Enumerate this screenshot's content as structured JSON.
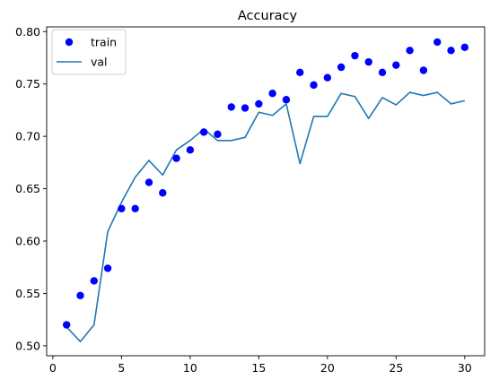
{
  "chart_data": {
    "type": "line",
    "title": "Accuracy",
    "xlabel": "",
    "ylabel": "",
    "xlim": [
      -0.45,
      31.45
    ],
    "ylim": [
      0.4905,
      0.8045
    ],
    "xticks": [
      0,
      5,
      10,
      15,
      20,
      25,
      30
    ],
    "yticks": [
      0.5,
      0.55,
      0.6,
      0.65,
      0.7,
      0.75,
      0.8
    ],
    "ytick_labels": [
      "0.50",
      "0.55",
      "0.60",
      "0.65",
      "0.70",
      "0.75",
      "0.80"
    ],
    "grid": false,
    "legend_position": "top-left",
    "x": [
      1,
      2,
      3,
      4,
      5,
      6,
      7,
      8,
      9,
      10,
      11,
      12,
      13,
      14,
      15,
      16,
      17,
      18,
      19,
      20,
      21,
      22,
      23,
      24,
      25,
      26,
      27,
      28,
      29,
      30
    ],
    "series": [
      {
        "name": "train",
        "style": "markers",
        "color": "#0000ff",
        "values": [
          0.52,
          0.548,
          0.562,
          0.574,
          0.631,
          0.631,
          0.656,
          0.646,
          0.679,
          0.687,
          0.704,
          0.702,
          0.728,
          0.727,
          0.731,
          0.741,
          0.735,
          0.761,
          0.749,
          0.756,
          0.766,
          0.777,
          0.771,
          0.761,
          0.768,
          0.782,
          0.763,
          0.79,
          0.782,
          0.785
        ]
      },
      {
        "name": "val",
        "style": "line",
        "color": "#1f77b4",
        "values": [
          0.518,
          0.504,
          0.52,
          0.609,
          0.637,
          0.661,
          0.677,
          0.663,
          0.687,
          0.696,
          0.707,
          0.696,
          0.696,
          0.699,
          0.723,
          0.72,
          0.731,
          0.674,
          0.719,
          0.719,
          0.741,
          0.738,
          0.717,
          0.737,
          0.73,
          0.742,
          0.739,
          0.742,
          0.731,
          0.734
        ]
      }
    ]
  }
}
